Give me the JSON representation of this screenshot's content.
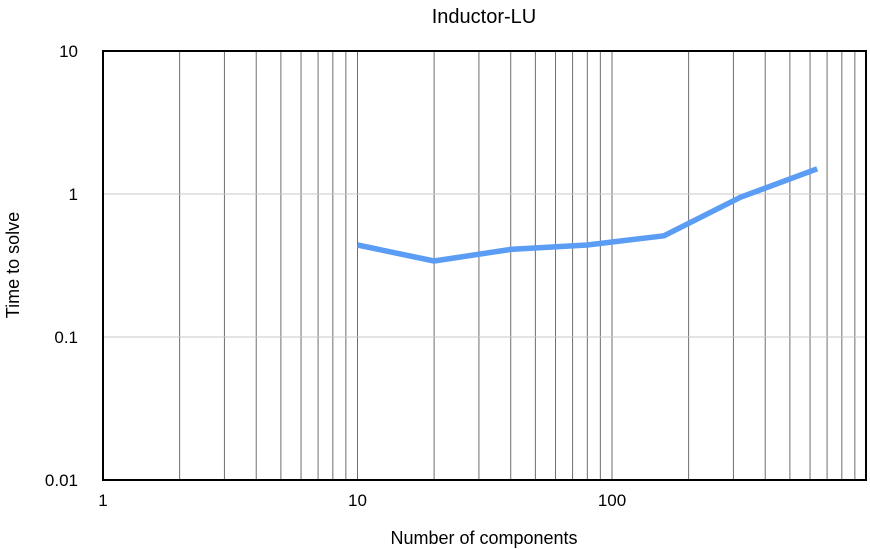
{
  "chart_data": {
    "type": "line",
    "title": "Inductor-LU",
    "xlabel": "Number of components",
    "ylabel": "Time to solve",
    "x_scale": "log",
    "y_scale": "log",
    "xlim": [
      1,
      1000
    ],
    "ylim": [
      0.01,
      10
    ],
    "x_ticks": [
      {
        "value": 1,
        "label": "1"
      },
      {
        "value": 10,
        "label": "10"
      },
      {
        "value": 100,
        "label": "100"
      }
    ],
    "y_ticks": [
      {
        "value": 10,
        "label": "10"
      },
      {
        "value": 1,
        "label": "1"
      },
      {
        "value": 0.1,
        "label": "0.1"
      },
      {
        "value": 0.01,
        "label": "0.01"
      }
    ],
    "x_gridlines": "vertical, at every integer multiple of each decade",
    "y_gridlines": "horizontal, at each decade",
    "legend": "none",
    "series": [
      {
        "color": "#5b9cf5",
        "x": [
          10,
          20,
          40,
          80,
          160,
          320,
          640
        ],
        "y": [
          0.44,
          0.34,
          0.41,
          0.44,
          0.51,
          0.95,
          1.5
        ]
      }
    ]
  }
}
